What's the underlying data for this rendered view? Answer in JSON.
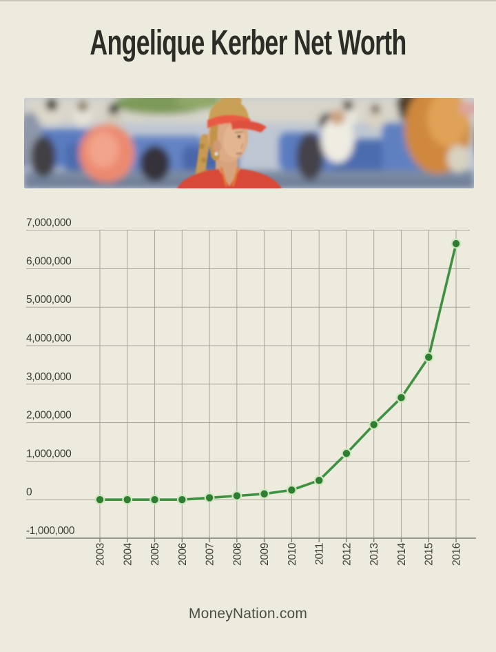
{
  "page": {
    "title": "Angelique Kerber Net Worth",
    "source_label": "MoneyNation.com",
    "background_color": "#ecebdd",
    "ink_color": "#2d2d28",
    "photo_description": "Angelique Kerber wearing a coral visor and red top in front of a blurred stadium crowd"
  },
  "chart_data": {
    "type": "line",
    "title": "",
    "xlabel": "",
    "ylabel": "",
    "grid": true,
    "legend": "none",
    "categories": [
      "2003",
      "2004",
      "2005",
      "2006",
      "2007",
      "2008",
      "2009",
      "2010",
      "2011",
      "2012",
      "2013",
      "2014",
      "2015",
      "2016"
    ],
    "values": [
      0,
      0,
      0,
      0,
      50000,
      100000,
      150000,
      250000,
      500000,
      1200000,
      1950000,
      2650000,
      3700000,
      6650000
    ],
    "ylim": [
      -1000000,
      7000000
    ],
    "y_ticks": [
      {
        "v": 7000000,
        "label": "7,000,000"
      },
      {
        "v": 6000000,
        "label": "6,000,000"
      },
      {
        "v": 5000000,
        "label": "5,000,000"
      },
      {
        "v": 4000000,
        "label": "4,000,000"
      },
      {
        "v": 3000000,
        "label": "3,000,000"
      },
      {
        "v": 2000000,
        "label": "2,000,000"
      },
      {
        "v": 1000000,
        "label": "1,000,000"
      },
      {
        "v": 0,
        "label": "0"
      },
      {
        "v": -1000000,
        "label": "-1,000,000"
      }
    ],
    "line_color": "#3f9142",
    "marker_color": "#2e7d32",
    "marker_ring_color": "#cde6bb",
    "grid_color": "#a7a69a",
    "axis_color": "#7d7c71",
    "tick_label_color": "#3e3e37"
  }
}
